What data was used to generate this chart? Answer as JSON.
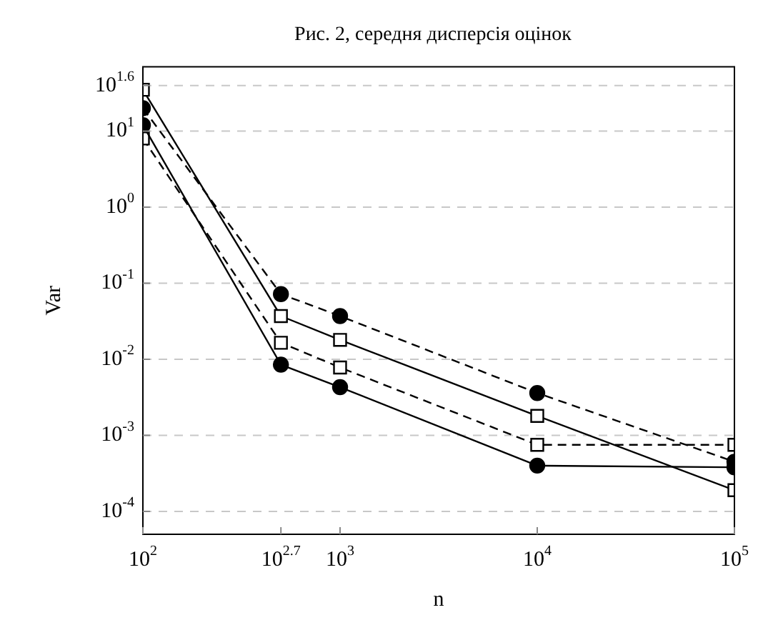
{
  "chart_data": {
    "type": "line",
    "title": "Рис. 2, середня дисперсія оцінок",
    "xlabel": "n",
    "ylabel": "Var",
    "log": "xy",
    "grid": "y",
    "legend": false,
    "x": [
      100,
      501.2,
      1000,
      10000,
      100000
    ],
    "xlim": [
      100,
      100000
    ],
    "ylim": [
      5e-05,
      70
    ],
    "xticks": [
      {
        "value": 100,
        "label": "10$^{2}$"
      },
      {
        "value": 501.2,
        "label": "10$^{2.7}$"
      },
      {
        "value": 1000,
        "label": "10$^{3}$"
      },
      {
        "value": 10000,
        "label": "10$^{4}$"
      },
      {
        "value": 100000,
        "label": "10$^{5}$"
      }
    ],
    "yticks": [
      {
        "value": 0.0001,
        "label": "10$^{-4}$"
      },
      {
        "value": 0.001,
        "label": "10$^{-3}$"
      },
      {
        "value": 0.01,
        "label": "10$^{-2}$"
      },
      {
        "value": 0.1,
        "label": "10$^{-1}$"
      },
      {
        "value": 1,
        "label": "10$^{0}$"
      },
      {
        "value": 10,
        "label": "10$^{1}$"
      },
      {
        "value": 39.81,
        "label": "10$^{1.6}$"
      }
    ],
    "series": [
      {
        "color": "#000000",
        "marker": "circle",
        "line_style": "solid",
        "values": [
          12,
          0.0085,
          0.0043,
          0.0004,
          0.00038
        ]
      },
      {
        "color": "#000000",
        "marker": "square",
        "line_style": "solid",
        "values": [
          35,
          0.037,
          0.018,
          0.0018,
          0.00019
        ]
      },
      {
        "color": "#000000",
        "marker": "circle",
        "line_style": "dashed",
        "values": [
          20,
          0.072,
          0.037,
          0.0036,
          0.00045
        ]
      },
      {
        "color": "#000000",
        "marker": "square",
        "line_style": "dashed",
        "values": [
          8,
          0.0165,
          0.0078,
          0.00075,
          0.00075
        ]
      }
    ]
  }
}
